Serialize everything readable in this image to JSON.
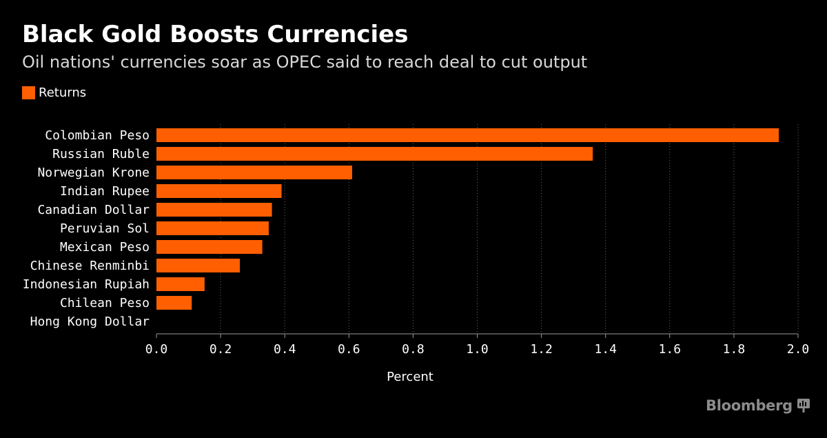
{
  "header": {
    "title": "Black Gold Boosts Currencies",
    "subtitle": "Oil nations' currencies soar as OPEC said to reach deal to cut output"
  },
  "legend": {
    "label": "Returns"
  },
  "colors": {
    "bar": "#ff5f00",
    "background": "#000000",
    "axis": "#9a9a9a",
    "grid": "#6a6a6a",
    "text": "#ffffff",
    "brand": "#8c8c8c"
  },
  "brand": {
    "name": "Bloomberg",
    "icon": "bloomberg-terminal-icon"
  },
  "chart_data": {
    "type": "bar",
    "orientation": "horizontal",
    "categories": [
      "Colombian Peso",
      "Russian Ruble",
      "Norwegian Krone",
      "Indian Rupee",
      "Canadian Dollar",
      "Peruvian Sol",
      "Mexican Peso",
      "Chinese Renminbi",
      "Indonesian Rupiah",
      "Chilean Peso",
      "Hong Kong Dollar"
    ],
    "series": [
      {
        "name": "Returns",
        "values": [
          1.94,
          1.36,
          0.61,
          0.39,
          0.36,
          0.35,
          0.33,
          0.26,
          0.15,
          0.11,
          0.0
        ]
      }
    ],
    "xlim": [
      0,
      2.0
    ],
    "xticks": [
      "0.0",
      "0.2",
      "0.4",
      "0.6",
      "0.8",
      "1.0",
      "1.2",
      "1.4",
      "1.6",
      "1.8",
      "2.0"
    ],
    "xlabel": "Percent",
    "ylabel": "",
    "grid": "vertical dotted",
    "legend_position": "top-left"
  }
}
